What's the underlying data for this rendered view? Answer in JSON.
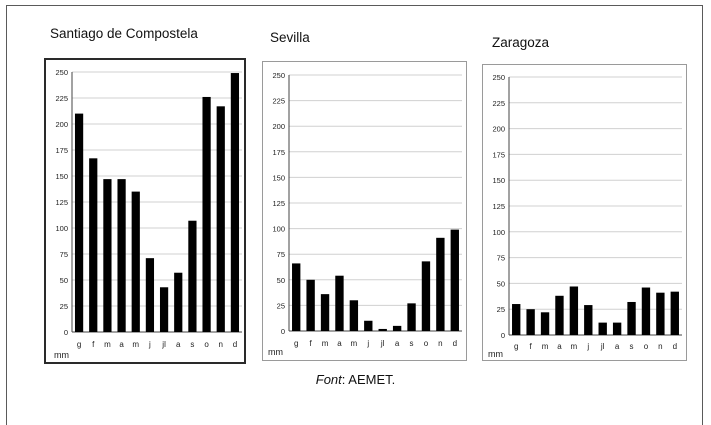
{
  "chart_data": [
    {
      "type": "bar",
      "title": "Santiago de Compostela",
      "categories": [
        "g",
        "f",
        "m",
        "a",
        "m",
        "j",
        "jl",
        "a",
        "s",
        "o",
        "n",
        "d"
      ],
      "values": [
        210,
        167,
        147,
        147,
        135,
        71,
        43,
        57,
        107,
        226,
        217,
        249
      ],
      "ylim": [
        0,
        250
      ],
      "yticks": [
        0,
        25,
        50,
        75,
        100,
        125,
        150,
        175,
        200,
        225,
        250
      ],
      "ylabel": "mm",
      "grid": true
    },
    {
      "type": "bar",
      "title": "Sevilla",
      "categories": [
        "g",
        "f",
        "m",
        "a",
        "m",
        "j",
        "jl",
        "a",
        "s",
        "o",
        "n",
        "d"
      ],
      "values": [
        66,
        50,
        36,
        54,
        30,
        10,
        2,
        5,
        27,
        68,
        91,
        99
      ],
      "ylim": [
        0,
        250
      ],
      "yticks": [
        0,
        25,
        50,
        75,
        100,
        125,
        150,
        175,
        200,
        225,
        250
      ],
      "ylabel": "mm",
      "grid": true
    },
    {
      "type": "bar",
      "title": "Zaragoza",
      "categories": [
        "g",
        "f",
        "m",
        "a",
        "m",
        "j",
        "jl",
        "a",
        "s",
        "o",
        "n",
        "d"
      ],
      "values": [
        30,
        25,
        22,
        38,
        47,
        29,
        12,
        12,
        32,
        46,
        41,
        42
      ],
      "ylim": [
        0,
        250
      ],
      "yticks": [
        0,
        25,
        50,
        75,
        100,
        125,
        150,
        175,
        200,
        225,
        250
      ],
      "ylabel": "mm",
      "grid": true
    }
  ],
  "footer": {
    "label": "Font",
    "text": ": AEMET."
  },
  "colors": {
    "bar": "#000000",
    "grid": "#d0d0d0",
    "axis": "#444444",
    "text": "#222222"
  }
}
